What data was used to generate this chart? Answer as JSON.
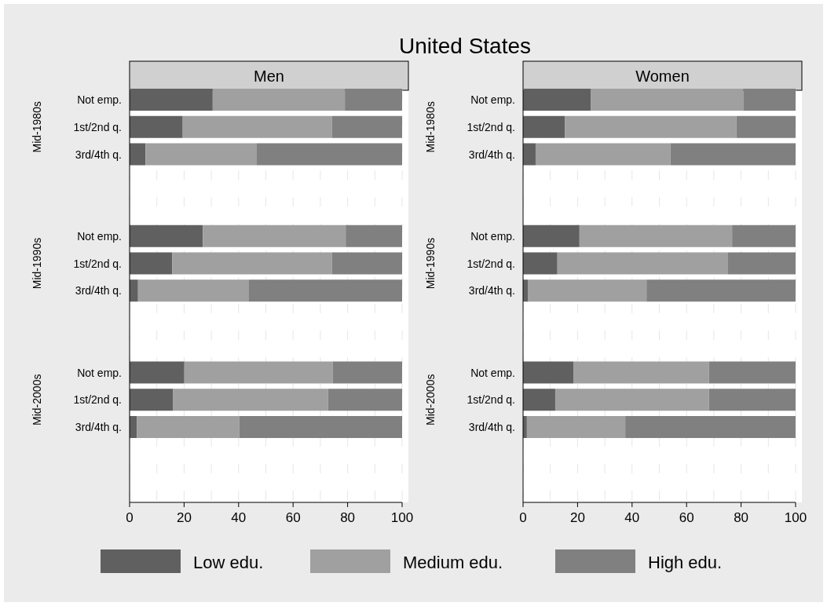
{
  "chart_data": [
    {
      "type": "bar",
      "orientation": "horizontal",
      "stacked": true,
      "title": "United States",
      "subtitle": "Men",
      "categories": [
        "Not emp.",
        "1st/2nd q.",
        "3rd/4th q.",
        null,
        null,
        "Not emp.",
        "1st/2nd q.",
        "3rd/4th q.",
        null,
        null,
        "Not emp.",
        "1st/2nd q.",
        "3rd/4th q."
      ],
      "annotations": [
        "Mid-1980s",
        "Mid-1990s",
        "Mid-2000s"
      ],
      "xlim": [
        0,
        100
      ],
      "xticks": [
        0,
        {
          "value": 10,
          "label": null
        },
        20,
        {
          "value": 30,
          "label": null
        },
        40,
        {
          "value": 50,
          "label": null
        },
        60,
        {
          "value": 70,
          "label": null
        },
        80,
        {
          "value": 90,
          "label": null
        },
        100
      ],
      "grid": "x",
      "legend": "bottom",
      "series": [
        {
          "name": "Low edu.",
          "color": "#606060",
          "values": [
            30.5,
            19.5,
            5.8,
            null,
            null,
            26.9,
            15.6,
            3.1,
            null,
            null,
            20.1,
            16.0,
            2.7
          ]
        },
        {
          "name": "Medium edu.",
          "color": "#a0a0a0",
          "values": [
            48.5,
            54.7,
            40.7,
            null,
            null,
            52.4,
            58.6,
            40.7,
            null,
            null,
            54.5,
            56.8,
            37.6
          ]
        },
        {
          "name": "High edu.",
          "color": "#808080",
          "values": [
            21.0,
            25.8,
            53.5,
            null,
            null,
            20.7,
            25.8,
            56.2,
            null,
            null,
            25.4,
            27.2,
            59.7
          ]
        }
      ]
    },
    {
      "type": "bar",
      "orientation": "horizontal",
      "stacked": true,
      "subtitle": "Women",
      "categories": [
        "Not emp.",
        "1st/2nd q.",
        "3rd/4th q.",
        null,
        null,
        "Not emp.",
        "1st/2nd q.",
        "3rd/4th q.",
        null,
        null,
        "Not emp.",
        "1st/2nd q.",
        "3rd/4th q."
      ],
      "annotations": [
        "Mid-1980s",
        "Mid-1990s",
        "Mid-2000s"
      ],
      "xlim": [
        0,
        100
      ],
      "xticks": [
        0,
        {
          "value": 10,
          "label": null
        },
        20,
        {
          "value": 30,
          "label": null
        },
        40,
        {
          "value": 50,
          "label": null
        },
        60,
        {
          "value": 70,
          "label": null
        },
        80,
        {
          "value": 90,
          "label": null
        },
        100
      ],
      "grid": "x",
      "series": [
        {
          "color": "#606060",
          "values": [
            24.8,
            15.3,
            4.6,
            null,
            null,
            20.7,
            12.6,
            1.9,
            null,
            null,
            18.6,
            11.8,
            1.4
          ]
        },
        {
          "color": "#a0a0a0",
          "values": [
            56.0,
            63.0,
            49.5,
            null,
            null,
            56.0,
            62.6,
            43.4,
            null,
            null,
            49.6,
            56.4,
            36.1
          ]
        },
        {
          "color": "#808080",
          "values": [
            19.2,
            21.7,
            45.9,
            null,
            null,
            23.3,
            24.8,
            54.7,
            null,
            null,
            31.8,
            31.8,
            62.5
          ]
        }
      ]
    }
  ]
}
